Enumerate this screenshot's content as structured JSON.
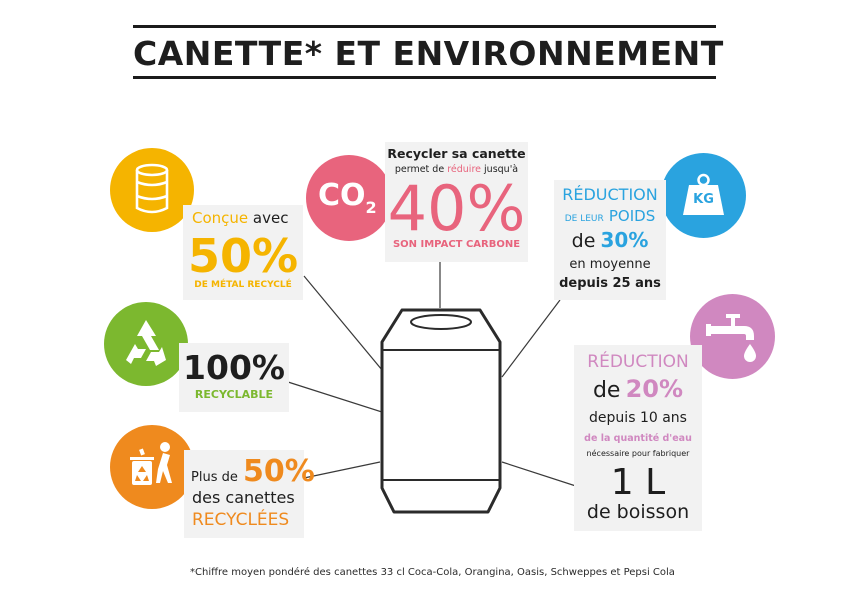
{
  "title": "CANETTE* ET ENVIRONNEMENT",
  "colors": {
    "yellow": "#f5b400",
    "green": "#7cb82f",
    "orange": "#ef8a1e",
    "pink": "#e8647d",
    "blue": "#2aa3df",
    "mauve": "#d088c0",
    "box": "#f2f2f2",
    "text": "#1e1e1e"
  },
  "facts": {
    "concue": {
      "icon": "food-can-icon",
      "line1_a": "Conçue",
      "line1_b": "avec",
      "big": "50%",
      "caption": "DE MÉTAL RECYCLÉ"
    },
    "recyclable": {
      "icon": "recycle-icon",
      "big": "100%",
      "caption": "RECYCLABLE"
    },
    "recyclees": {
      "icon": "recycling-bin-icon",
      "line1_a": "Plus de",
      "line1_big": "50%",
      "line2": "des canettes",
      "line3": "RECYCLÉES"
    },
    "carbone": {
      "icon_main": "CO",
      "icon_sub": "2",
      "line1": "Recycler sa canette",
      "line2_a": "permet de",
      "line2_b": "réduire",
      "line2_c": "jusqu'à",
      "big": "40%",
      "caption": "SON IMPACT CARBONE"
    },
    "poids": {
      "icon": "kg-weight-icon",
      "icon_label": "KG",
      "line1": "RÉDUCTION",
      "line2_a": "DE LEUR",
      "line2_b": "POIDS",
      "line3_a": "de",
      "line3_b": "30%",
      "line4": "en moyenne",
      "line5": "depuis 25 ans"
    },
    "eau": {
      "icon": "water-tap-icon",
      "line1": "RÉDUCTION",
      "line2_a": "de",
      "line2_b": "20%",
      "line3": "depuis 10 ans",
      "line4": "de la quantité d'eau",
      "line5": "nécessaire pour fabriquer",
      "line6": "1 L",
      "line7": "de boisson"
    }
  },
  "footnote": "*Chiffre moyen pondéré des canettes 33 cl Coca-Cola, Orangina, Oasis, Schweppes et Pepsi Cola"
}
